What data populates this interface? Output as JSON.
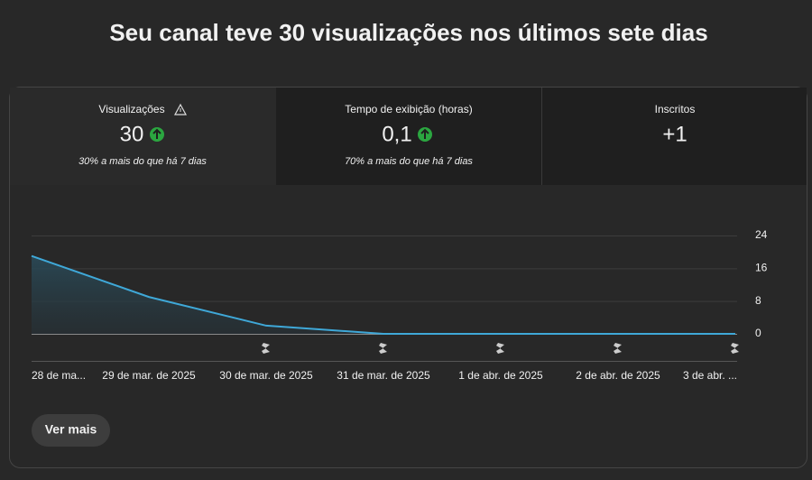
{
  "header": {
    "title": "Seu canal teve 30 visualizações nos últimos sete dias"
  },
  "metrics": [
    {
      "label": "Visualizações",
      "value": "30",
      "change": "30% a mais do que há 7 dias"
    },
    {
      "label": "Tempo de exibição (horas)",
      "value": "0,1",
      "change": "70% a mais do que há 7 dias"
    },
    {
      "label": "Inscritos",
      "value": "+1"
    }
  ],
  "chart_data": {
    "type": "line",
    "categories": [
      "28 de ma...",
      "29 de mar. de 2025",
      "30 de mar. de 2025",
      "31 de mar. de 2025",
      "1 de abr. de 2025",
      "2 de abr. de 2025",
      "3 de abr. ..."
    ],
    "values": [
      19,
      9,
      2,
      0,
      0,
      0,
      0
    ],
    "color": "#3fa8d8",
    "ylim": [
      0,
      24
    ],
    "yticks": [
      0,
      8,
      16,
      24
    ],
    "grid": true
  },
  "button": {
    "label": "Ver mais"
  }
}
